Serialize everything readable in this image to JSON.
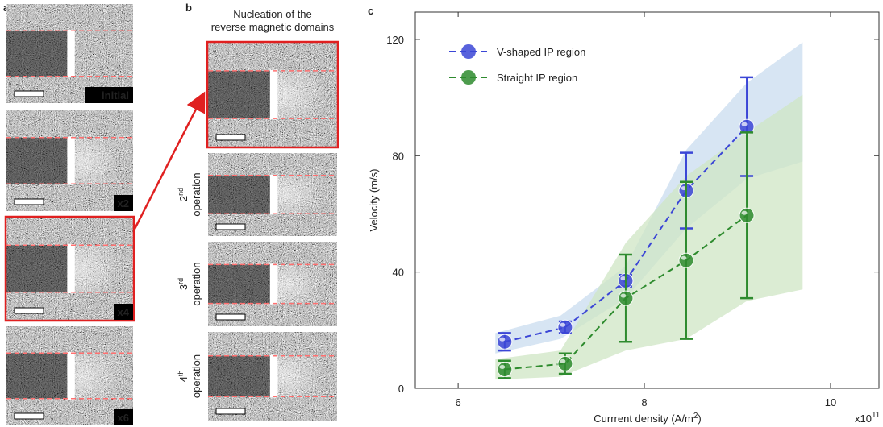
{
  "panel_a": {
    "label": "a",
    "images": [
      {
        "label": "initial"
      },
      {
        "label": "x2"
      },
      {
        "label": "x4"
      },
      {
        "label": "x6"
      }
    ]
  },
  "panel_b": {
    "label": "b",
    "title_lines": [
      "Nucleation of the",
      "reverse magnetic domains"
    ],
    "operations": [
      {
        "num": "2",
        "sup": "nd",
        "text": "operation"
      },
      {
        "num": "3",
        "sup": "rd",
        "text": "operation"
      },
      {
        "num": "4",
        "sup": "th",
        "text": "operation"
      }
    ]
  },
  "chart_data": {
    "type": "line",
    "panel_label": "c",
    "ylabel": "Velocity (m/s)",
    "xlabel": {
      "text": "Currrent density (A/m",
      "sup": "2",
      "end": ")"
    },
    "x_multiplier": {
      "base": "x10",
      "exp": "11"
    },
    "xlim": [
      5.54,
      10.52
    ],
    "ylim": [
      0,
      129.4
    ],
    "xticks": [
      6,
      8,
      10
    ],
    "yticks": [
      0,
      40,
      80,
      120
    ],
    "legend": "upper left",
    "series": [
      {
        "name": "V-shaped IP region",
        "color": "#3b46d6",
        "x": [
          6.5,
          7.15,
          7.8,
          8.45,
          9.1
        ],
        "values": [
          16,
          21,
          37,
          68,
          90
        ],
        "errors": [
          3,
          2,
          2,
          13,
          17
        ],
        "band": {
          "color": "#c9dcef",
          "x": [
            6.4,
            7.1,
            7.8,
            8.45,
            9.1,
            9.7
          ],
          "lower": [
            12,
            17,
            31,
            55,
            72,
            78
          ],
          "upper": [
            19,
            25,
            42,
            82,
            105,
            119
          ]
        }
      },
      {
        "name": "Straight IP region",
        "color": "#2e8b2e",
        "x": [
          6.5,
          7.15,
          7.8,
          8.45,
          9.1
        ],
        "values": [
          6.5,
          8.5,
          31,
          44,
          59.5
        ],
        "errors": [
          3,
          3.5,
          15,
          27,
          28.5
        ],
        "band": {
          "color": "#cfe6c4",
          "x": [
            6.4,
            7.1,
            7.8,
            8.45,
            9.1,
            9.7
          ],
          "lower": [
            3,
            4,
            13,
            17,
            30,
            34
          ],
          "upper": [
            10,
            13,
            50,
            73,
            88,
            101
          ]
        }
      }
    ]
  }
}
